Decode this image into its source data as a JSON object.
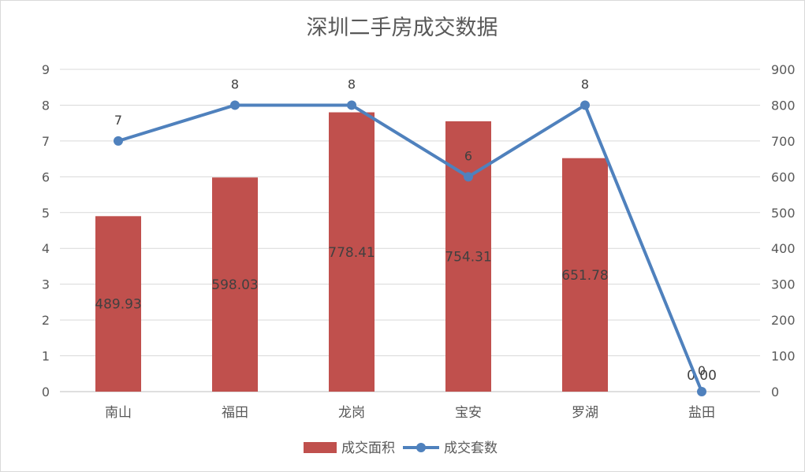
{
  "chart_data": {
    "type": "bar+line",
    "title": "深圳二手房成交数据",
    "categories": [
      "南山",
      "福田",
      "龙岗",
      "宝安",
      "罗湖",
      "盐田"
    ],
    "series": [
      {
        "name": "成交面积",
        "type": "bar",
        "axis": "left",
        "values": [
          4.9,
          5.98,
          7.8,
          7.55,
          6.52,
          0
        ],
        "labels": [
          "489.93",
          "598.03",
          "778.41",
          "754.31",
          "651.78",
          "0.00"
        ],
        "color": "#c0504d"
      },
      {
        "name": "成交套数",
        "type": "line",
        "axis": "right",
        "values": [
          700,
          800,
          800,
          600,
          800,
          0
        ],
        "labels": [
          "7",
          "8",
          "8",
          "6",
          "8",
          "0"
        ],
        "color": "#4f81bd"
      }
    ],
    "y_left": {
      "min": 0,
      "max": 9,
      "step": 1,
      "ticks": [
        "0",
        "1",
        "2",
        "3",
        "4",
        "5",
        "6",
        "7",
        "8",
        "9"
      ]
    },
    "y_right": {
      "min": 0,
      "max": 900,
      "step": 100,
      "ticks": [
        "0",
        "100",
        "200",
        "300",
        "400",
        "500",
        "600",
        "700",
        "800",
        "900"
      ]
    },
    "grid": true,
    "legend": "bottom"
  }
}
